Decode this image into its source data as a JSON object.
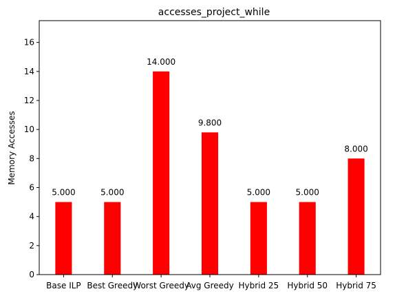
{
  "chart_data": {
    "type": "bar",
    "title": "accesses_project_while",
    "xlabel": "",
    "ylabel": "Memory Accesses",
    "categories": [
      "Base ILP",
      "Best Greedy",
      "Worst Greedy",
      "Avg Greedy",
      "Hybrid 25",
      "Hybrid 50",
      "Hybrid 75"
    ],
    "values": [
      5.0,
      5.0,
      14.0,
      9.8,
      5.0,
      5.0,
      8.0
    ],
    "data_labels": [
      "5.000",
      "5.000",
      "14.000",
      "9.800",
      "5.000",
      "5.000",
      "8.000"
    ],
    "ylim": [
      0,
      17.5
    ],
    "yticks": [
      0,
      2,
      4,
      6,
      8,
      10,
      12,
      14,
      16
    ],
    "bar_color": "#ff0000",
    "grid": false,
    "legend": "none"
  }
}
